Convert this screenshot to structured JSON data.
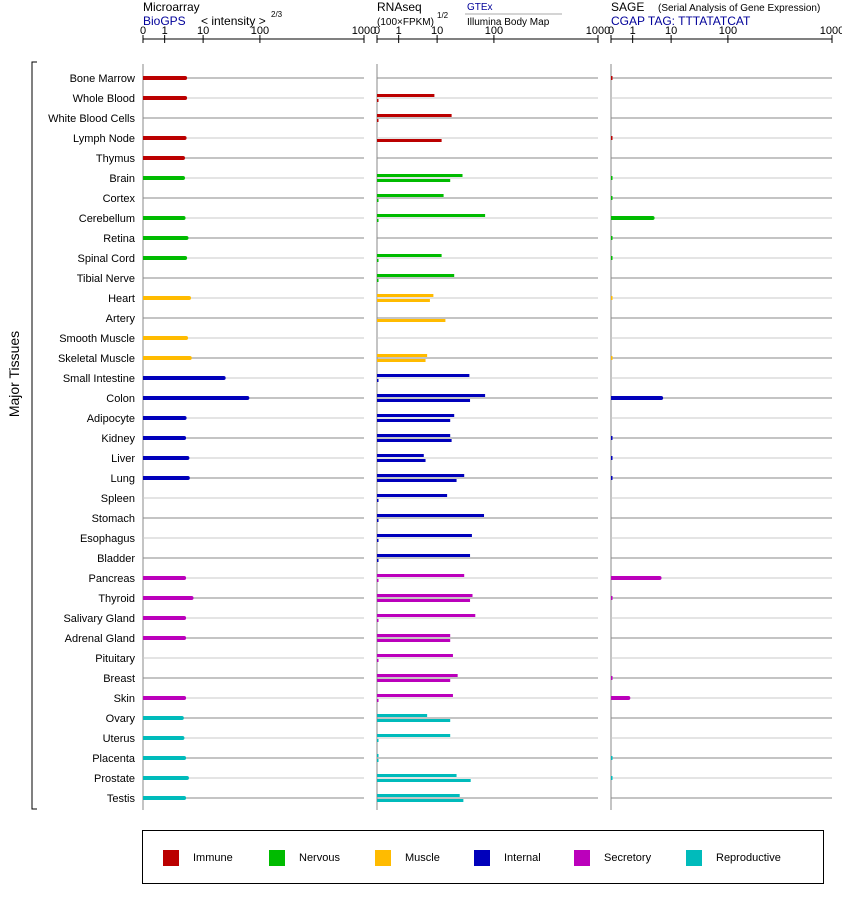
{
  "chart_data": {
    "type": "bar",
    "ylabel": "Major Tissues",
    "tissues": [
      "Bone Marrow",
      "Whole Blood",
      "White Blood Cells",
      "Lymph Node",
      "Thymus",
      "Brain",
      "Cortex",
      "Cerebellum",
      "Retina",
      "Spinal Cord",
      "Tibial Nerve",
      "Heart",
      "Artery",
      "Smooth Muscle",
      "Skeletal Muscle",
      "Small Intestine",
      "Colon",
      "Adipocyte",
      "Kidney",
      "Liver",
      "Lung",
      "Spleen",
      "Stomach",
      "Esophagus",
      "Bladder",
      "Pancreas",
      "Thyroid",
      "Salivary Gland",
      "Adrenal Gland",
      "Pituitary",
      "Breast",
      "Skin",
      "Ovary",
      "Uterus",
      "Placenta",
      "Prostate",
      "Testis"
    ],
    "groups": [
      "immune",
      "immune",
      "immune",
      "immune",
      "immune",
      "nervous",
      "nervous",
      "nervous",
      "nervous",
      "nervous",
      "nervous",
      "muscle",
      "muscle",
      "muscle",
      "muscle",
      "internal",
      "internal",
      "internal",
      "internal",
      "internal",
      "internal",
      "internal",
      "internal",
      "internal",
      "internal",
      "secretory",
      "secretory",
      "secretory",
      "secretory",
      "secretory",
      "secretory",
      "secretory",
      "reproductive",
      "reproductive",
      "reproductive",
      "reproductive",
      "reproductive"
    ],
    "colors": {
      "immune": "#bb0000",
      "nervous": "#00bb00",
      "muscle": "#ffbb00",
      "internal": "#0000bb",
      "secretory": "#bb00bb",
      "reproductive": "#00bbbb"
    },
    "panels": [
      {
        "id": "microarray",
        "title": "Microarray",
        "subtitle": "BioGPS",
        "unit_label": "< intensity >",
        "unit_exponent": "2/3",
        "ticks": [
          0,
          1,
          10,
          100,
          1000
        ],
        "xlim": [
          0,
          1000
        ],
        "series": [
          {
            "name": "BioGPS",
            "values": [
              3.4,
              3.4,
              null,
              3.3,
              3.0,
              3.0,
              null,
              3.1,
              3.7,
              3.4,
              null,
              4.3,
              null,
              3.6,
              4.5,
              23,
              60,
              3.3,
              3.2,
              3.9,
              4.0,
              null,
              null,
              null,
              null,
              3.2,
              5.0,
              3.2,
              3.2,
              null,
              null,
              3.2,
              2.8,
              2.9,
              3.2,
              3.8,
              3.2
            ]
          }
        ]
      },
      {
        "id": "rnaseq",
        "title": "RNAseq",
        "unit_label": "(100×FPKM)",
        "unit_exponent": "1/2",
        "ticks": [
          0,
          1,
          10,
          100,
          1000
        ],
        "xlim": [
          0,
          1000
        ],
        "series": [
          {
            "name": "GTEx",
            "values": [
              null,
              8.5,
              18,
              null,
              null,
              28,
              13,
              70,
              null,
              12,
              20,
              8,
              null,
              null,
              5.5,
              37,
              70,
              20,
              17,
              4.5,
              30,
              15,
              67,
              41,
              38,
              30,
              42,
              47,
              17,
              19,
              23,
              19,
              5.5,
              17,
              0,
              22,
              25
            ]
          },
          {
            "name": "Illumina Body Map",
            "values": [
              null,
              0,
              0,
              12,
              null,
              17,
              0,
              0,
              null,
              0,
              0,
              6.5,
              14,
              null,
              5,
              0,
              38,
              17,
              18,
              5,
              22,
              0,
              0,
              0,
              0,
              0,
              38,
              0,
              17,
              0,
              17,
              0,
              17,
              0,
              0,
              39,
              29
            ]
          }
        ]
      },
      {
        "id": "sage",
        "title": "SAGE",
        "subtitle": "CGAP TAG: TTTATATCAT",
        "note": "(Serial Analysis of Gene Expression)",
        "ticks": [
          0,
          1,
          10,
          100,
          1000
        ],
        "xlim": [
          0,
          1000
        ],
        "series": [
          {
            "name": "SAGE",
            "values": [
              0.05,
              null,
              null,
              0.05,
              null,
              0.05,
              0.05,
              3.3,
              0.05,
              0.05,
              null,
              0.03,
              null,
              null,
              0.03,
              null,
              5.5,
              null,
              0.05,
              0.05,
              0.05,
              null,
              null,
              null,
              null,
              5.0,
              0.05,
              null,
              null,
              null,
              0.05,
              0.8,
              null,
              null,
              0.05,
              0.05,
              null
            ]
          }
        ]
      }
    ]
  },
  "legend": [
    {
      "label": "Immune",
      "color": "#bb0000"
    },
    {
      "label": "Nervous",
      "color": "#00bb00"
    },
    {
      "label": "Muscle",
      "color": "#ffbb00"
    },
    {
      "label": "Internal",
      "color": "#0000bb"
    },
    {
      "label": "Secretory",
      "color": "#bb00bb"
    },
    {
      "label": "Reproductive",
      "color": "#00bbbb"
    }
  ]
}
